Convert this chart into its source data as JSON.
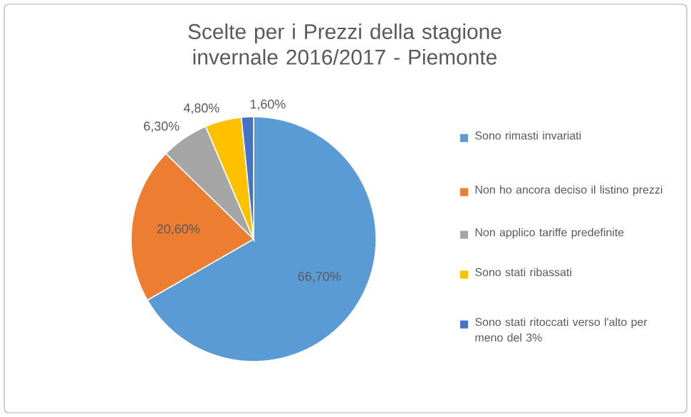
{
  "chart_data": {
    "type": "pie",
    "title": "Scelte per i Prezzi della stagione invernale 2016/2017 - Piemonte",
    "categories": [
      "Sono rimasti invariati",
      "Non ho ancora deciso il listino prezzi",
      "Non applico tariffe predefinite",
      "Sono stati ribassati",
      "Sono stati ritoccati verso l'alto per meno del 3%"
    ],
    "values": [
      66.7,
      20.6,
      6.3,
      4.8,
      1.6
    ],
    "colors": [
      "#5b9bd5",
      "#ed7d31",
      "#a5a5a5",
      "#ffc000",
      "#4472c4"
    ],
    "value_labels": [
      "66,70%",
      "20,60%",
      "6,30%",
      "4,80%",
      "1,60%"
    ],
    "legend": "right"
  }
}
